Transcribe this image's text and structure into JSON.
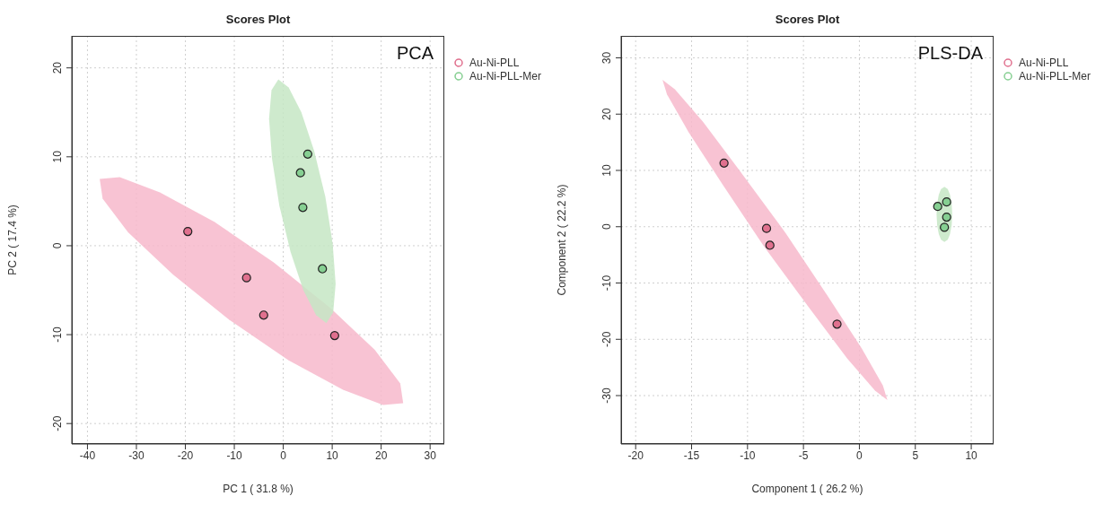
{
  "chart_data": [
    {
      "type": "scatter",
      "title": "Scores Plot",
      "xlabel": "PC 1 ( 31.8 %)",
      "ylabel": "PC 2 ( 17.4 %)",
      "annotations": [
        "PCA"
      ],
      "xlim": [
        -43.2,
        32.9
      ],
      "ylim": [
        -22.3,
        23.6
      ],
      "xticks": [
        -40,
        -30,
        -20,
        -10,
        0,
        10,
        20,
        30
      ],
      "yticks": [
        -20,
        -10,
        0,
        10,
        20
      ],
      "grid": true,
      "legend": "top right",
      "marker": "circle",
      "series": [
        {
          "type": "area",
          "marker": "none",
          "color": "#f7b8cb",
          "x": [
            24.5,
            20.4,
            12.2,
            1.1,
            -11.1,
            -22.6,
            -31.7,
            -36.9,
            -37.5,
            -33.4,
            -25.2,
            -14.1,
            -1.9,
            9.6,
            18.7,
            23.9
          ],
          "values": [
            -17.7,
            -17.9,
            -16.2,
            -12.9,
            -8.3,
            -3.2,
            1.5,
            5.3,
            7.5,
            7.7,
            6.0,
            2.7,
            -1.9,
            -7.0,
            -11.7,
            -15.5
          ]
        },
        {
          "type": "area",
          "marker": "none",
          "color": "#c6e6c4",
          "x": [
            8.8,
            6.7,
            4.1,
            1.5,
            -0.8,
            -2.3,
            -2.9,
            -2.4,
            -1.0,
            1.1,
            3.7,
            6.3,
            8.6,
            10.1,
            10.7,
            10.2
          ],
          "values": [
            -8.7,
            -7.8,
            -5.0,
            -0.7,
            4.5,
            9.8,
            14.3,
            17.5,
            18.7,
            17.8,
            15.0,
            10.7,
            5.5,
            0.2,
            -4.3,
            -7.5
          ]
        },
        {
          "type": "scatter",
          "name": "Au-Ni-PLL",
          "color": "#e0708e",
          "x": [
            -19.5,
            -7.5,
            -4,
            10.5
          ],
          "values": [
            1.6,
            -3.6,
            -7.8,
            -10.1
          ]
        },
        {
          "type": "scatter",
          "name": "Au-Ni-PLL-Mer",
          "color": "#86cf92",
          "x": [
            5,
            3.5,
            4,
            8
          ],
          "values": [
            10.3,
            8.2,
            4.3,
            -2.6
          ]
        }
      ]
    },
    {
      "type": "scatter",
      "title": "Scores Plot",
      "xlabel": "Component 1 ( 26.2 %)",
      "ylabel": "Component 2 ( 22.2 %)",
      "annotations": [
        "PLS-DA"
      ],
      "xlim": [
        -21.3,
        12.0
      ],
      "ylim": [
        -38.6,
        33.9
      ],
      "xticks": [
        -20,
        -15,
        -10,
        -5,
        0,
        5,
        10
      ],
      "yticks": [
        -30,
        -20,
        -10,
        0,
        10,
        20,
        30
      ],
      "grid": true,
      "legend": "top right",
      "marker": "circle",
      "series": [
        {
          "type": "area",
          "marker": "none",
          "color": "#f7b8cb",
          "x": [
            2.5,
            1.4,
            -1.1,
            -4.5,
            -8.5,
            -12.2,
            -15.3,
            -17.2,
            -17.6,
            -16.5,
            -14.0,
            -10.6,
            -6.6,
            -2.9,
            0.2,
            2.1
          ],
          "values": [
            -30.8,
            -29.1,
            -23.4,
            -14.4,
            -3.6,
            7.4,
            16.9,
            23.5,
            26.1,
            24.4,
            18.7,
            9.7,
            -1.1,
            -12.1,
            -21.6,
            -28.2
          ]
        },
        {
          "type": "area",
          "marker": "none",
          "color": "#c6e6c4",
          "x": [
            8.3,
            8.25,
            8.1,
            7.9,
            7.6,
            7.3,
            7.1,
            6.95,
            6.9,
            6.95,
            7.1,
            7.3,
            7.6,
            7.9,
            8.1,
            8.25
          ],
          "values": [
            2.2,
            4.1,
            5.7,
            6.7,
            7.1,
            6.7,
            5.7,
            4.1,
            2.2,
            0.3,
            -1.3,
            -2.3,
            -2.7,
            -2.3,
            -1.3,
            0.3
          ]
        },
        {
          "type": "scatter",
          "name": "Au-Ni-PLL",
          "color": "#e0708e",
          "x": [
            -12.1,
            -8.3,
            -8,
            -2
          ],
          "values": [
            11.3,
            -0.3,
            -3.3,
            -17.3
          ]
        },
        {
          "type": "scatter",
          "name": "Au-Ni-PLL-Mer",
          "color": "#86cf92",
          "x": [
            7,
            7.8,
            7.8,
            7.6
          ],
          "values": [
            3.6,
            4.4,
            1.7,
            -0.1
          ]
        }
      ]
    }
  ]
}
